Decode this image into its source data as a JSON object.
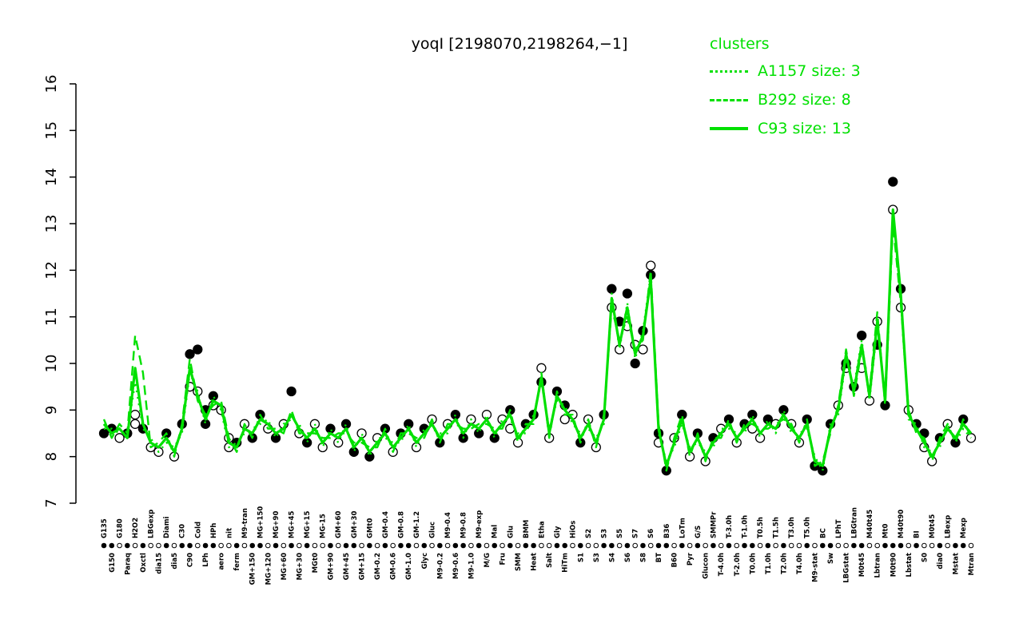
{
  "chart_data": {
    "type": "line",
    "title": "yoqI [2198070,2198264,−1]",
    "ylim": [
      7,
      16
    ],
    "yticks": [
      7,
      8,
      9,
      10,
      11,
      12,
      13,
      14,
      15,
      16
    ],
    "grid": false,
    "legend_position": "top-right",
    "legend": {
      "title": "clusters",
      "entries": [
        {
          "label": "A1157 size: 3",
          "style": "dotted"
        },
        {
          "label": "B292 size: 8",
          "style": "dashed"
        },
        {
          "label": "C93 size: 13",
          "style": "solid"
        }
      ]
    },
    "color": "#00e000",
    "categories": [
      "G135",
      "G150",
      "G180",
      "Paraq",
      "H2O2",
      "Oxctl",
      "LBGexp",
      "dia15",
      "Diami",
      "dia5",
      "C30",
      "C90",
      "Cold",
      "LPh",
      "HPh",
      "aero",
      "nit",
      "ferm",
      "M9-tran",
      "GM+150",
      "MG+150",
      "MG+120",
      "MG+90",
      "MG+60",
      "MG+45",
      "MG+30",
      "MG+15",
      "MGt0",
      "MG-15",
      "GM+90",
      "GM+60",
      "GM+45",
      "GM+30",
      "GM+15",
      "GMt0",
      "GM-0.2",
      "GM-0.4",
      "GM-0.6",
      "GM-0.8",
      "GM-1.0",
      "GM-1.2",
      "Glyc",
      "Gluc",
      "M9-0.2",
      "M9-0.4",
      "M9-0.6",
      "M9-0.8",
      "M9-1.0",
      "M9-exp",
      "M/G",
      "Mal",
      "Fru",
      "Glu",
      "SMM",
      "BMM",
      "Heat",
      "Etha",
      "Salt",
      "Gly",
      "HiTm",
      "HiOs",
      "S1",
      "S2",
      "S3",
      "S3",
      "S4",
      "S5",
      "S6",
      "S7",
      "S8",
      "S6",
      "BT",
      "B36",
      "B60",
      "LoTm",
      "Pyr",
      "G/S",
      "Glucon",
      "SMMPr",
      "T-4.0h",
      "T-3.0h",
      "T-2.0h",
      "T-1.0h",
      "T0.0h",
      "T0.5h",
      "T1.0h",
      "T1.5h",
      "T2.0h",
      "T3.0h",
      "T4.0h",
      "T5.0h",
      "M9-stat",
      "BC",
      "Sw",
      "LPhT",
      "LBGstat",
      "LBGtran",
      "M0t45",
      "M40t45",
      "Lbtran",
      "Mt0",
      "M0t90",
      "M40t90",
      "Lbstat",
      "BI",
      "S0",
      "M0t45",
      "dia0",
      "LBexp",
      "Mstat",
      "Mexp",
      "Mtran"
    ],
    "series": [
      {
        "name": "A1157",
        "size": 3,
        "style": "dotted",
        "values": [
          8.6,
          8.6,
          8.5,
          8.5,
          9.6,
          8.6,
          8.4,
          8.1,
          8.3,
          8.2,
          8.5,
          9.8,
          9.4,
          8.7,
          9.3,
          9.0,
          8.2,
          8.3,
          8.5,
          8.6,
          8.7,
          8.8,
          8.4,
          8.7,
          8.8,
          8.7,
          8.3,
          8.7,
          8.2,
          8.6,
          8.3,
          8.7,
          8.1,
          8.5,
          8.0,
          8.4,
          8.4,
          8.3,
          8.3,
          8.7,
          8.2,
          8.6,
          8.6,
          8.5,
          8.5,
          8.9,
          8.4,
          8.8,
          8.5,
          8.9,
          8.4,
          8.8,
          8.8,
          8.5,
          8.5,
          8.9,
          9.6,
          8.6,
          9.2,
          9.1,
          8.7,
          8.5,
          8.6,
          8.4,
          8.7,
          11.5,
          10.3,
          11.3,
          10.1,
          10.7,
          11.9,
          8.5,
          7.9,
          8.2,
          8.7,
          8.2,
          8.3,
          8.1,
          8.2,
          8.6,
          8.6,
          8.5,
          8.5,
          8.9,
          8.4,
          8.8,
          8.5,
          9.0,
          8.5,
          8.5,
          8.6,
          8.0,
          7.7,
          8.7,
          8.9,
          10.1,
          9.5,
          10.5,
          9.2,
          10.8,
          9.3,
          13.2,
          11.4,
          8.8,
          8.7,
          8.2,
          8.1,
          8.2,
          8.7,
          8.3,
          8.6,
          8.4
        ]
      },
      {
        "name": "B292",
        "size": 8,
        "style": "dashed",
        "values": [
          8.8,
          8.4,
          8.7,
          8.5,
          10.6,
          9.8,
          8.2,
          8.3,
          8.5,
          8.0,
          8.7,
          10.1,
          9.2,
          8.9,
          9.1,
          9.2,
          8.4,
          8.1,
          8.7,
          8.4,
          8.9,
          8.6,
          8.6,
          8.5,
          9.0,
          8.5,
          8.5,
          8.5,
          8.4,
          8.4,
          8.5,
          8.5,
          8.3,
          8.3,
          8.2,
          8.2,
          8.6,
          8.1,
          8.5,
          8.5,
          8.4,
          8.4,
          8.8,
          8.3,
          8.7,
          8.7,
          8.6,
          8.6,
          8.7,
          8.7,
          8.6,
          8.6,
          9.0,
          8.3,
          8.7,
          8.7,
          9.8,
          8.4,
          9.4,
          8.9,
          8.9,
          8.3,
          8.8,
          8.2,
          8.9,
          11.2,
          10.5,
          11.0,
          10.3,
          10.5,
          12.0,
          8.7,
          7.7,
          8.4,
          8.9,
          8.0,
          8.5,
          7.9,
          8.4,
          8.4,
          8.8,
          8.3,
          8.7,
          8.7,
          8.6,
          8.6,
          8.7,
          8.8,
          8.7,
          8.3,
          8.8,
          7.8,
          7.9,
          8.5,
          9.1,
          10.3,
          9.3,
          10.3,
          9.4,
          11.1,
          9.1,
          13.0,
          11.3,
          9.0,
          8.5,
          8.4,
          7.9,
          8.4,
          8.7,
          8.3,
          8.8,
          8.4
        ]
      },
      {
        "name": "C93",
        "size": 13,
        "style": "solid",
        "values": [
          8.7,
          8.5,
          8.6,
          8.4,
          9.9,
          8.7,
          8.3,
          8.2,
          8.4,
          8.1,
          8.6,
          9.9,
          9.3,
          8.8,
          9.2,
          9.1,
          8.3,
          8.2,
          8.6,
          8.5,
          8.8,
          8.7,
          8.5,
          8.6,
          8.9,
          8.6,
          8.4,
          8.6,
          8.3,
          8.5,
          8.4,
          8.6,
          8.2,
          8.4,
          8.1,
          8.3,
          8.5,
          8.2,
          8.4,
          8.6,
          8.3,
          8.5,
          8.7,
          8.4,
          8.6,
          8.8,
          8.5,
          8.7,
          8.6,
          8.8,
          8.5,
          8.7,
          8.9,
          8.4,
          8.6,
          8.8,
          9.7,
          8.5,
          9.3,
          9.0,
          8.8,
          8.4,
          8.7,
          8.3,
          8.8,
          11.4,
          10.4,
          11.2,
          10.2,
          10.6,
          11.8,
          8.6,
          7.8,
          8.3,
          8.8,
          8.1,
          8.4,
          8.0,
          8.3,
          8.5,
          8.7,
          8.4,
          8.6,
          8.8,
          8.5,
          8.7,
          8.6,
          8.9,
          8.6,
          8.4,
          8.7,
          7.9,
          7.8,
          8.6,
          9.0,
          10.2,
          9.4,
          10.4,
          9.3,
          10.9,
          9.2,
          13.3,
          11.5,
          8.9,
          8.6,
          8.3,
          8.0,
          8.3,
          8.6,
          8.4,
          8.7,
          8.5
        ]
      }
    ],
    "points": {
      "values": [
        8.5,
        8.6,
        8.4,
        8.5,
        8.7,
        8.6,
        8.2,
        8.1,
        8.5,
        8.0,
        8.7,
        10.2,
        9.4,
        8.7,
        9.3,
        9.0,
        8.2,
        8.3,
        8.7,
        8.4,
        8.9,
        8.6,
        8.4,
        8.7,
        9.4,
        8.5,
        8.3,
        8.7,
        8.2,
        8.6,
        8.3,
        8.7,
        8.1,
        8.5,
        8.0,
        8.4,
        8.6,
        8.1,
        8.5,
        8.7,
        8.2,
        8.6,
        8.8,
        8.3,
        8.7,
        8.9,
        8.4,
        8.8,
        8.5,
        8.9,
        8.4,
        8.8,
        9.0,
        8.3,
        8.7,
        8.9,
        9.9,
        8.4,
        9.4,
        9.1,
        8.9,
        8.3,
        8.8,
        8.2,
        8.9,
        11.6,
        10.3,
        11.5,
        10.4,
        10.7,
        12.1,
        8.5,
        7.7,
        8.4,
        8.9,
        8.0,
        8.5,
        7.9,
        8.4,
        8.6,
        8.8,
        8.3,
        8.7,
        8.9,
        8.4,
        8.8,
        8.7,
        9.0,
        8.7,
        8.3,
        8.8,
        7.8,
        7.7,
        8.7,
        9.1,
        9.9,
        9.5,
        10.6,
        9.2,
        10.9,
        9.1,
        13.9,
        11.6,
        9.0,
        8.7,
        8.2,
        7.9,
        8.4,
        8.7,
        8.3,
        8.8,
        8.4
      ],
      "open": [
        0,
        0,
        1,
        0,
        1,
        0,
        1,
        1,
        0,
        1,
        0,
        0,
        1,
        0,
        0,
        1,
        1,
        0,
        1,
        0,
        0,
        1,
        0,
        1,
        0,
        1,
        0,
        1,
        1,
        0,
        1,
        0,
        0,
        1,
        0,
        1,
        0,
        1,
        0,
        0,
        1,
        0,
        1,
        0,
        1,
        0,
        0,
        1,
        0,
        1,
        0,
        1,
        0,
        1,
        0,
        0,
        1,
        1,
        0,
        0,
        1,
        0,
        1,
        1,
        0,
        0,
        1,
        0,
        1,
        0,
        1,
        0,
        0,
        1,
        0,
        1,
        0,
        1,
        0,
        1,
        0,
        1,
        0,
        0,
        1,
        0,
        1,
        0,
        1,
        1,
        0,
        1,
        0,
        0,
        1,
        1,
        0,
        0,
        1,
        1,
        0,
        0,
        0,
        1,
        0,
        1,
        1,
        0,
        1,
        0,
        0,
        1
      ]
    },
    "extra_points": [
      [
        4,
        8.9,
        1
      ],
      [
        11,
        9.5,
        1
      ],
      [
        12,
        10.3,
        0
      ],
      [
        13,
        9.0,
        0
      ],
      [
        14,
        9.1,
        1
      ],
      [
        16,
        8.4,
        1
      ],
      [
        52,
        8.6,
        1
      ],
      [
        56,
        9.6,
        0
      ],
      [
        59,
        8.8,
        1
      ],
      [
        65,
        11.2,
        1
      ],
      [
        66,
        10.9,
        0
      ],
      [
        67,
        10.8,
        1
      ],
      [
        68,
        10.0,
        0
      ],
      [
        69,
        10.3,
        1
      ],
      [
        70,
        11.9,
        0
      ],
      [
        71,
        8.3,
        1
      ],
      [
        74,
        8.9,
        0
      ],
      [
        83,
        8.6,
        1
      ],
      [
        91,
        7.8,
        0
      ],
      [
        95,
        10.0,
        0
      ],
      [
        97,
        9.9,
        1
      ],
      [
        99,
        10.4,
        0
      ],
      [
        101,
        13.3,
        1
      ],
      [
        102,
        11.2,
        1
      ],
      [
        105,
        8.5,
        0
      ]
    ]
  }
}
